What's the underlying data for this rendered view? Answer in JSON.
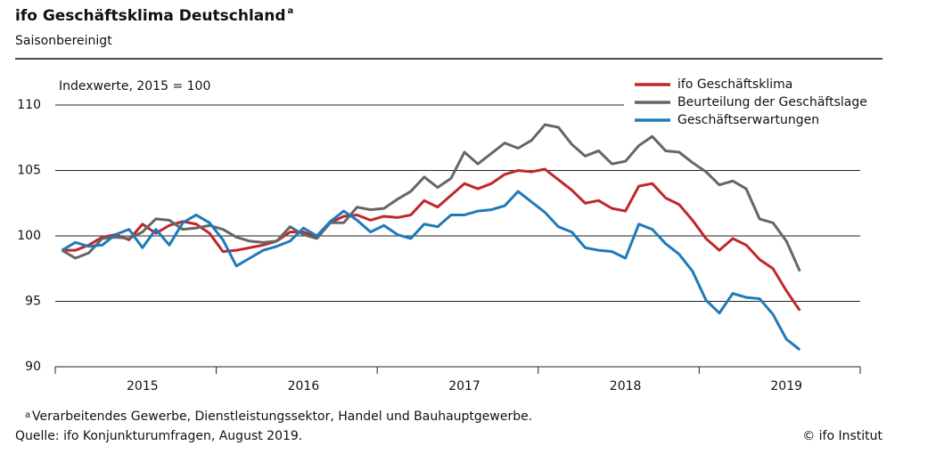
{
  "chart_data": {
    "type": "line",
    "title": "ifo Geschäftsklima Deutschland",
    "title_marker": "a",
    "subtitle": "Saisonbereinigt",
    "y_label": "Indexwerte, 2015 = 100",
    "categories": [
      null,
      null,
      null,
      null,
      null,
      null,
      "2015",
      null,
      null,
      null,
      null,
      null,
      null,
      null,
      null,
      null,
      null,
      null,
      "2016",
      null,
      null,
      null,
      null,
      null,
      null,
      null,
      null,
      null,
      null,
      null,
      "2017",
      null,
      null,
      null,
      null,
      null,
      null,
      null,
      null,
      null,
      null,
      null,
      "2018",
      null,
      null,
      null,
      null,
      null,
      null,
      null,
      null,
      null,
      null,
      null,
      "2019",
      null
    ],
    "ylim": [
      90,
      110
    ],
    "yticks": [
      90,
      95,
      100,
      105,
      110
    ],
    "grid": true,
    "legend": "top-right",
    "series": [
      {
        "name": "ifo Geschäftsklima",
        "color": "#c0272d",
        "values": [
          98.9,
          98.9,
          99.3,
          99.9,
          100.1,
          99.7,
          100.9,
          100.2,
          100.8,
          101.1,
          100.9,
          100.2,
          98.8,
          98.9,
          99.1,
          99.3,
          99.6,
          100.3,
          100.3,
          99.9,
          101.0,
          101.5,
          101.6,
          101.2,
          101.5,
          101.4,
          101.6,
          102.7,
          102.2,
          103.1,
          104.0,
          103.6,
          104.0,
          104.7,
          105.0,
          104.9,
          105.1,
          104.3,
          103.5,
          102.5,
          102.7,
          102.1,
          101.9,
          103.8,
          104.0,
          102.9,
          102.4,
          101.2,
          99.8,
          98.9,
          99.8,
          99.3,
          98.2,
          97.5,
          95.8,
          94.3
        ]
      },
      {
        "name": "Beurteilung der Geschäftslage",
        "color": "#666666",
        "values": [
          98.9,
          98.3,
          98.7,
          99.8,
          99.9,
          99.8,
          100.3,
          101.3,
          101.2,
          100.5,
          100.6,
          100.8,
          100.5,
          99.9,
          99.6,
          99.5,
          99.6,
          100.7,
          100.1,
          99.8,
          101.0,
          101.0,
          102.2,
          102.0,
          102.1,
          102.8,
          103.4,
          104.5,
          103.7,
          104.4,
          106.4,
          105.5,
          106.3,
          107.1,
          106.7,
          107.3,
          108.5,
          108.3,
          107.0,
          106.1,
          106.5,
          105.5,
          105.7,
          106.9,
          107.6,
          106.5,
          106.4,
          105.6,
          104.9,
          103.9,
          104.2,
          103.6,
          101.3,
          101.0,
          99.6,
          97.3
        ]
      },
      {
        "name": "Geschäftserwartungen",
        "color": "#1f7ab8",
        "values": [
          98.9,
          99.5,
          99.2,
          99.3,
          100.1,
          100.5,
          99.1,
          100.5,
          99.3,
          101.0,
          101.6,
          101.0,
          99.7,
          97.7,
          98.3,
          98.9,
          99.2,
          99.6,
          100.6,
          100.0,
          101.1,
          101.9,
          101.2,
          100.3,
          100.8,
          100.1,
          99.8,
          100.9,
          100.7,
          101.6,
          101.6,
          101.9,
          102.0,
          102.3,
          103.4,
          102.6,
          101.8,
          100.7,
          100.3,
          99.1,
          98.9,
          98.8,
          98.3,
          100.9,
          100.5,
          99.4,
          98.6,
          97.3,
          95.1,
          94.1,
          95.6,
          95.3,
          95.2,
          94.0,
          92.1,
          91.3
        ]
      }
    ],
    "footnote_marker": "a",
    "footnote": "Verarbeitendes Gewerbe, Dienstleistungssektor, Handel und Bauhauptgewerbe.",
    "source": "Quelle: ifo Konjunkturumfragen, August 2019.",
    "copyright": "© ifo Institut"
  }
}
